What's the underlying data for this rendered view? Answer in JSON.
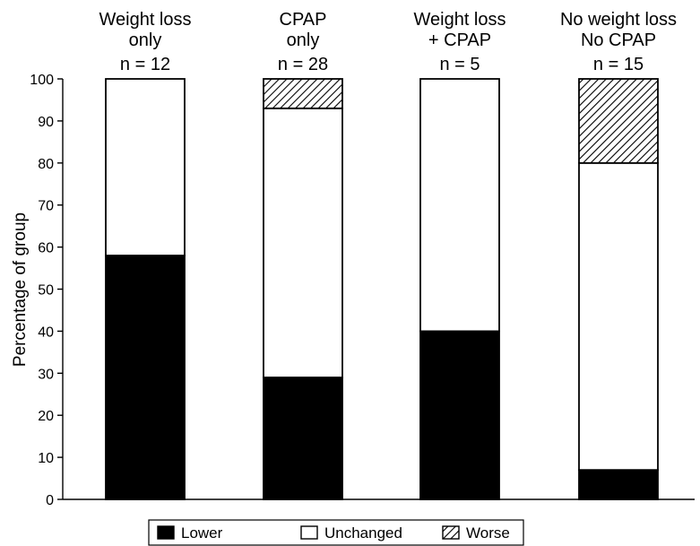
{
  "chart_data": {
    "type": "bar",
    "stacked": true,
    "categories": [
      {
        "line1": "Weight loss",
        "line2": "only",
        "n": "n = 12"
      },
      {
        "line1": "CPAP",
        "line2": "only",
        "n": "n = 28"
      },
      {
        "line1": "Weight loss",
        "line2": "+ CPAP",
        "n": "n = 5"
      },
      {
        "line1": "No weight loss",
        "line2": "No CPAP",
        "n": "n = 15"
      }
    ],
    "series": [
      {
        "name": "Lower",
        "fill": "#000000",
        "values": [
          58,
          29,
          40,
          7
        ]
      },
      {
        "name": "Unchanged",
        "fill": "#ffffff",
        "values": [
          42,
          64,
          60,
          73
        ]
      },
      {
        "name": "Worse",
        "fill": "hatch",
        "values": [
          0,
          7,
          0,
          20
        ]
      }
    ],
    "ylabel": "Percentage of group",
    "ylim": [
      0,
      100
    ],
    "yticks": [
      0,
      10,
      20,
      30,
      40,
      50,
      60,
      70,
      80,
      90,
      100
    ],
    "grid": false,
    "legend_position": "bottom"
  }
}
